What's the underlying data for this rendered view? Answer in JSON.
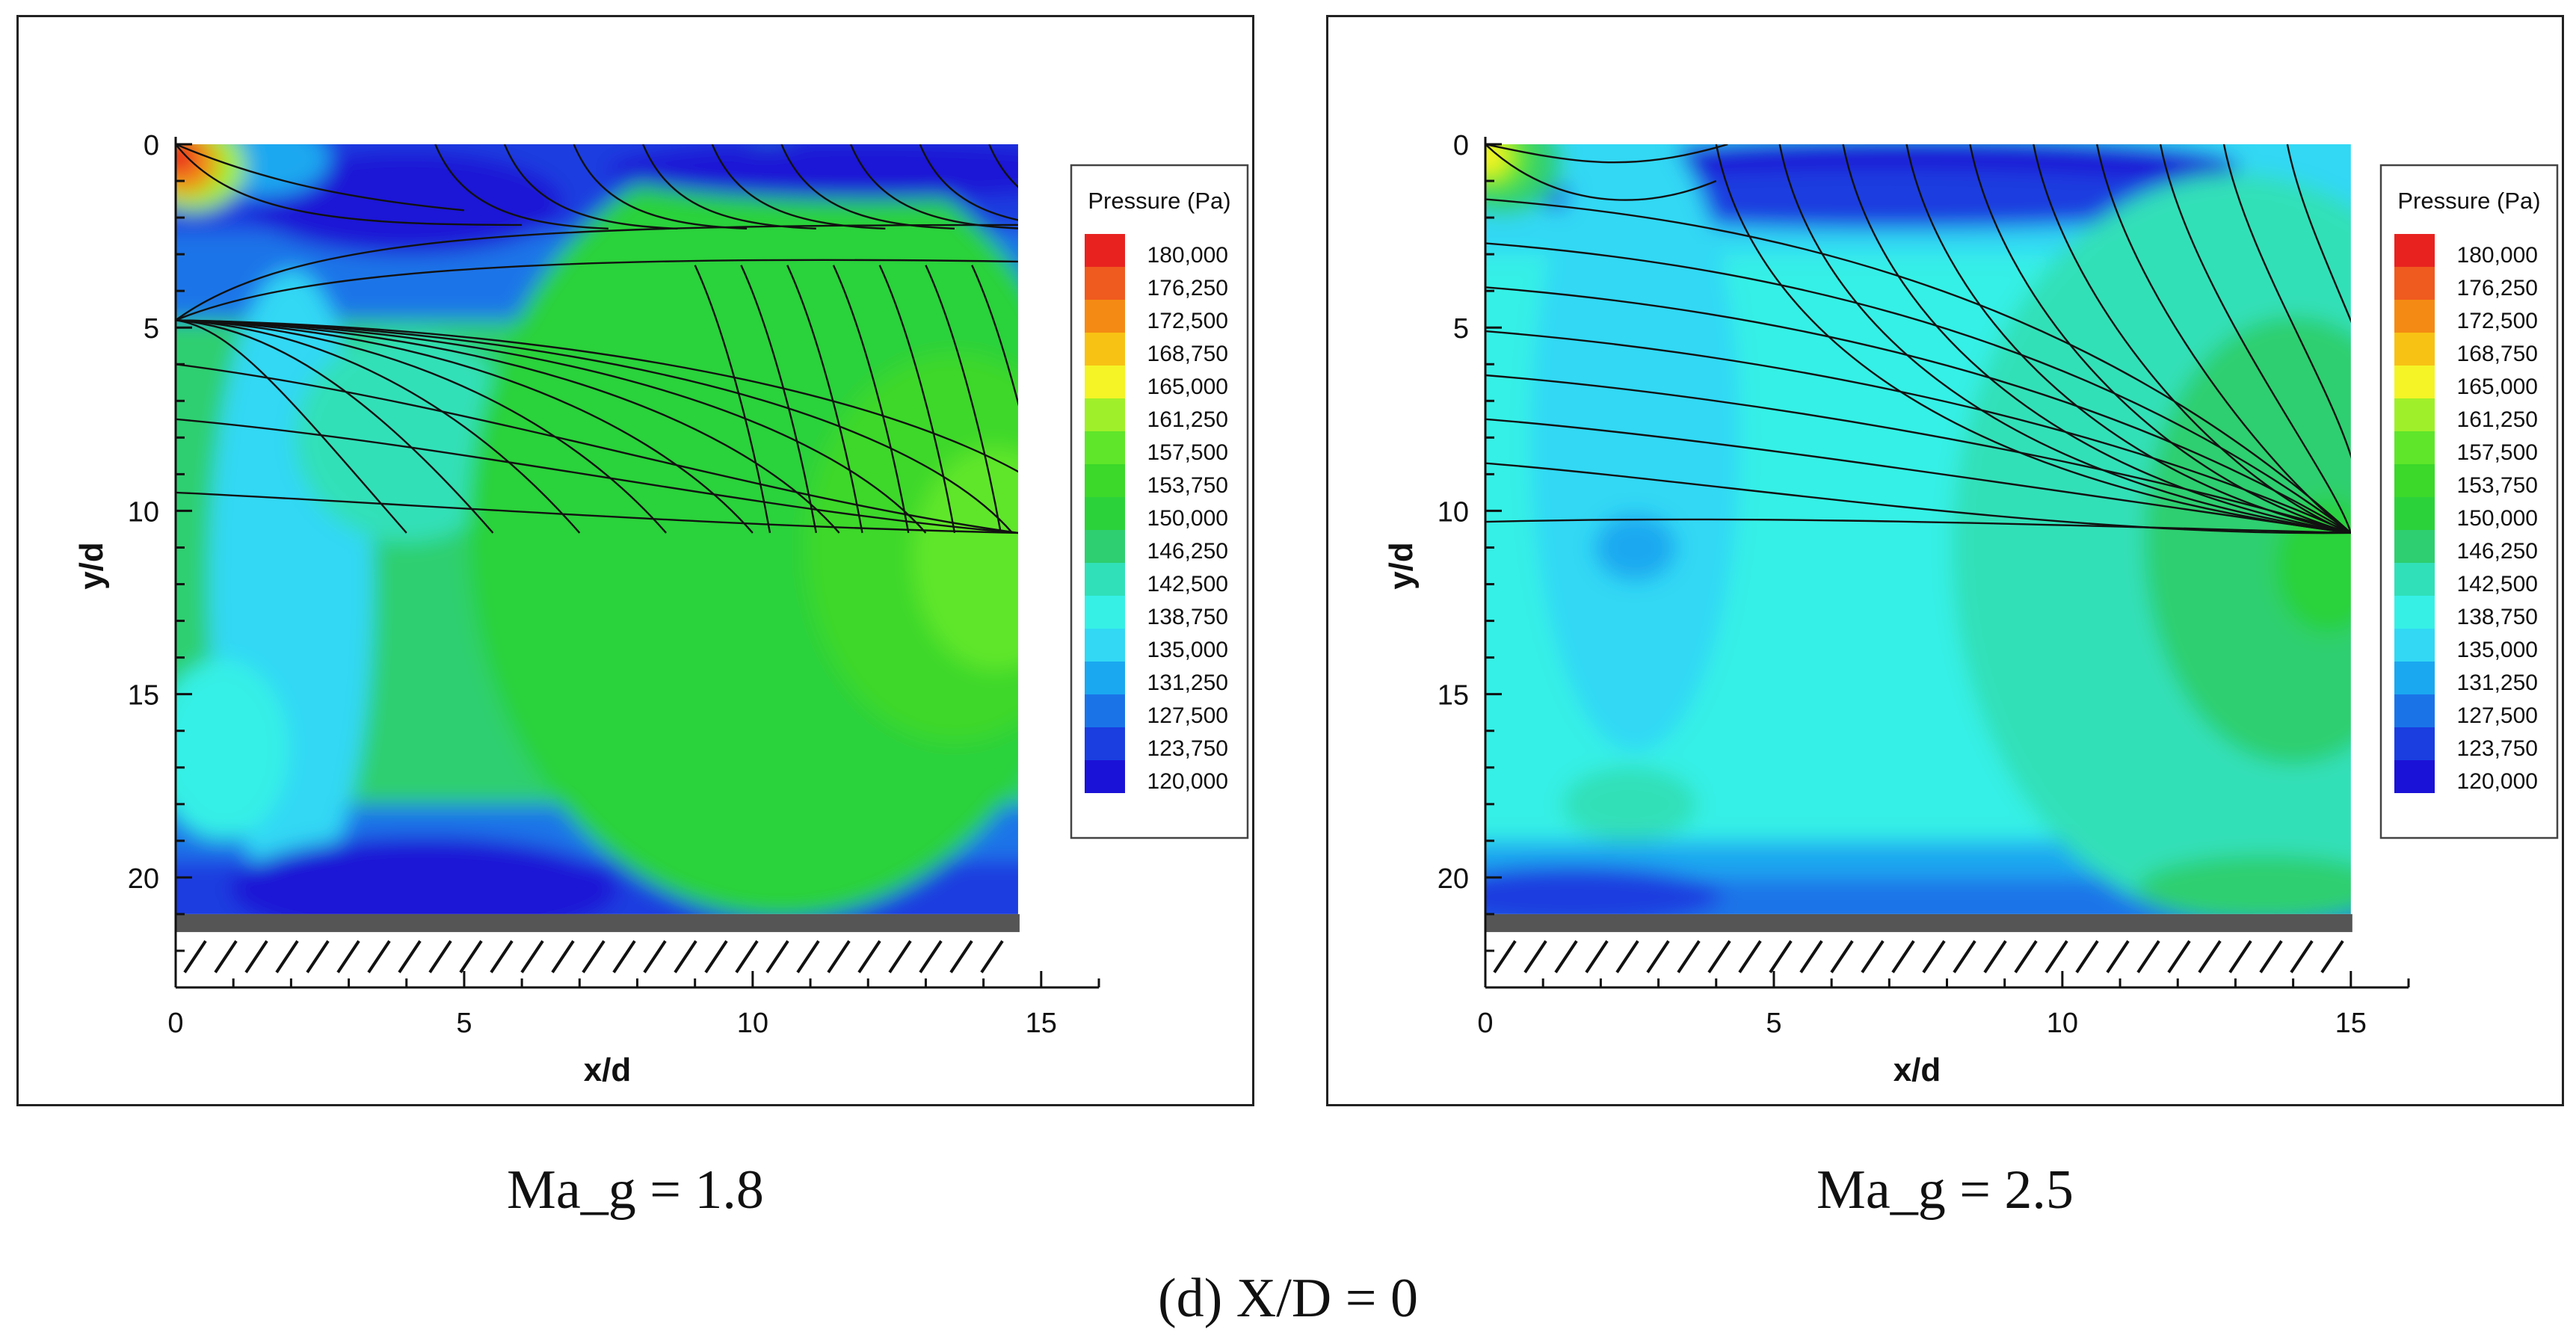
{
  "figure_label": "(d)  X/D = 0",
  "chart_data": [
    {
      "type": "heatmap",
      "subtype": "pressure contour with streamlines",
      "caption": "Ma_g = 1.8",
      "xlabel": "x/d",
      "ylabel": "y/d",
      "xlim": [
        0,
        16
      ],
      "ylim": [
        23,
        0
      ],
      "x_domain_max": 14.6,
      "xticks": [
        0,
        5,
        10,
        15
      ],
      "yticks": [
        0,
        5,
        10,
        15,
        20
      ],
      "wall_y": 21,
      "legend_title": "Pressure (Pa)",
      "legend_levels": [
        "180,000",
        "176,250",
        "172,500",
        "168,750",
        "165,000",
        "161,250",
        "157,500",
        "153,750",
        "150,000",
        "146,250",
        "142,500",
        "138,750",
        "135,000",
        "131,250",
        "127,500",
        "123,750",
        "120,000"
      ],
      "bands_summary": [
        {
          "y_range": [
            0,
            2.3
          ],
          "level": "123,750",
          "note": "low-pressure layer; red peak near origin"
        },
        {
          "y_range": [
            2.3,
            4.8
          ],
          "level": "127,500"
        },
        {
          "y_range": [
            4.8,
            18
          ],
          "level": "150,000",
          "note": "high-pressure core, max ~157,500 near x/d=14, y/d=11"
        },
        {
          "y_range": [
            18,
            21
          ],
          "level": "120,000",
          "note": "low-pressure pocket x/d 2-7 near wall"
        }
      ],
      "streamline_convergence": [
        {
          "x": [
            0,
            14.6
          ],
          "y": 4.8,
          "type": "separatrix"
        },
        {
          "x": [
            0,
            14.6
          ],
          "y": 10.6,
          "type": "convergence line"
        },
        {
          "x": [
            5,
            14.6
          ],
          "y": 2.3,
          "type": "convergence line"
        }
      ]
    },
    {
      "type": "heatmap",
      "subtype": "pressure contour with streamlines",
      "caption": "Ma_g = 2.5",
      "xlabel": "x/d",
      "ylabel": "y/d",
      "xlim": [
        0,
        16
      ],
      "ylim": [
        23,
        0
      ],
      "x_domain_max": 15,
      "xticks": [
        0,
        5,
        10,
        15
      ],
      "yticks": [
        0,
        5,
        10,
        15,
        20
      ],
      "wall_y": 21,
      "legend_title": "Pressure (Pa)",
      "legend_levels": [
        "180,000",
        "176,250",
        "172,500",
        "168,750",
        "165,000",
        "161,250",
        "157,500",
        "153,750",
        "150,000",
        "146,250",
        "142,500",
        "138,750",
        "135,000",
        "131,250",
        "127,500",
        "123,750",
        "120,000"
      ],
      "bands_summary": [
        {
          "y_range": [
            0,
            1.5
          ],
          "level": "123,750",
          "note": "low-pressure pocket x/d 4-11; yellow-green peak near origin"
        },
        {
          "y_range": [
            1.5,
            19
          ],
          "level": "138,750",
          "note": "max ~150,000 near x/d 12-15, y/d 10-12"
        },
        {
          "y_range": [
            19,
            21
          ],
          "level": "123,750"
        }
      ],
      "streamline_convergence": [
        {
          "x": [
            0,
            15
          ],
          "y": 10.6,
          "type": "focal point at x/d=15"
        }
      ]
    }
  ]
}
